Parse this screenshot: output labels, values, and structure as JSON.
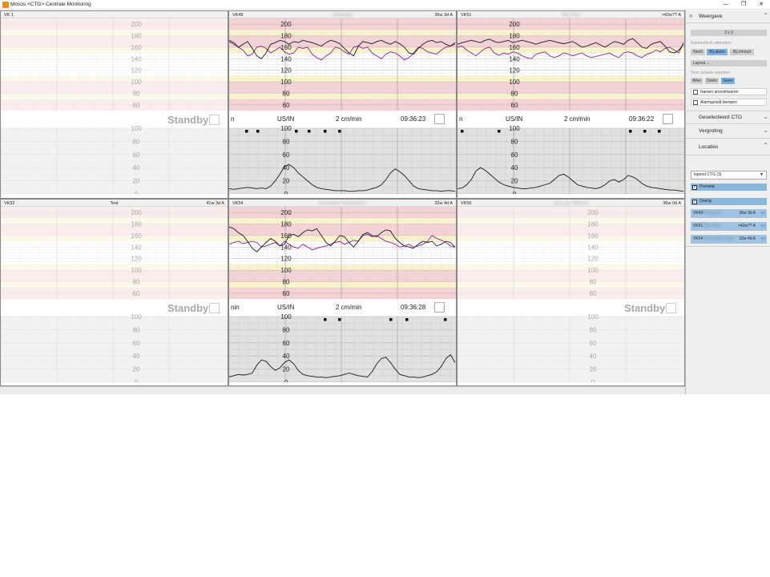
{
  "window": {
    "title": "Mosos <CTG> Centrale Monitoring",
    "controls": [
      "—",
      "❐",
      "✕"
    ]
  },
  "colors": {
    "fhr1": "#1a1a1a",
    "fhr2": "#8b1f98",
    "toco": "#1a1a1a",
    "band_red": "#f6cfd4",
    "band_yellow": "#fbf5c8",
    "band_white": "#ffffff",
    "toco_bg": "#e1e1e1",
    "accent": "#7fb2dc"
  },
  "speed_label": "2 cm/min",
  "fhr_scale": {
    "min": 50,
    "max": 210,
    "labels": [
      "200",
      "180",
      "160",
      "140",
      "120",
      "100",
      "80",
      "60"
    ]
  },
  "toco_scale": {
    "min": 0,
    "max": 100,
    "labels": [
      "100",
      "80",
      "60",
      "40",
      "20",
      "0"
    ]
  },
  "standby_label": "Standby",
  "tiles": [
    {
      "bed": "VK 1",
      "name": "",
      "ga": "",
      "state": "empty"
    },
    {
      "bed": "VK49",
      "name": "Redacted",
      "ga": "36w 3d A",
      "state": "active",
      "mode_cut": "n",
      "mode": "US/IN",
      "time": "09:36:23"
    },
    {
      "bed": "VK51",
      "name": "Tilly Vries",
      "ga": ">42w?? A",
      "state": "active",
      "mode_cut": "n",
      "mode": "US/IN",
      "time": "09:36:22"
    },
    {
      "bed": "VK52",
      "name": "Test",
      "ga": "41w 3d A",
      "state": "standby"
    },
    {
      "bed": "VK54",
      "name": "Annemarie Oelenhuizen",
      "ga": "32w 4d A",
      "state": "active",
      "mode_cut": "nin",
      "mode": "US/IN",
      "time": "09:36:28"
    },
    {
      "bed": "VK55",
      "name": "Vera van Wijkhuis",
      "ga": "36w 0d A",
      "state": "standby"
    }
  ],
  "chart_data": [
    {
      "type": "line",
      "title": "VK49",
      "ylim": [
        50,
        210
      ],
      "series": [
        {
          "name": "",
          "color": "#1a1a1a",
          "values": [
            172,
            168,
            160,
            165,
            170,
            158,
            145,
            140,
            150,
            165,
            168,
            172,
            170,
            165,
            170,
            168,
            172,
            170,
            168,
            165,
            162,
            168,
            172,
            170,
            166,
            158,
            150,
            145,
            162,
            170,
            168,
            166,
            170,
            172,
            168,
            165,
            170,
            166,
            160,
            150,
            148,
            158,
            165,
            170,
            172,
            168,
            170,
            165,
            162,
            168
          ]
        },
        {
          "name": "",
          "color": "#8b1f98",
          "values": [
            170,
            165,
            160,
            155,
            145,
            148,
            160,
            162,
            158,
            150,
            155,
            160,
            152,
            148,
            150,
            160,
            158,
            160,
            148,
            142,
            138,
            145,
            150,
            160,
            158,
            152,
            148,
            160,
            162,
            158,
            160,
            150,
            145,
            140,
            148,
            152,
            150,
            145,
            138,
            142,
            150,
            160,
            158,
            152,
            150,
            148,
            155,
            160,
            162,
            165
          ]
        },
        {
          "name": "",
          "color": "#1a1a1a",
          "values": [
            8,
            7,
            8,
            9,
            10,
            9,
            8,
            9,
            8,
            12,
            20,
            30,
            42,
            45,
            40,
            32,
            26,
            20,
            14,
            10,
            8,
            7,
            6,
            5,
            5,
            5,
            4,
            4,
            5,
            5,
            6,
            8,
            10,
            14,
            22,
            32,
            38,
            34,
            28,
            20,
            12,
            8,
            7,
            6,
            5,
            5,
            4,
            5,
            5,
            4
          ]
        }
      ]
    },
    {
      "type": "line",
      "title": "VK51",
      "ylim": [
        50,
        210
      ],
      "series": [
        {
          "name": "",
          "color": "#1a1a1a",
          "values": [
            165,
            168,
            170,
            172,
            170,
            168,
            172,
            174,
            170,
            168,
            170,
            172,
            168,
            170,
            172,
            170,
            168,
            165,
            168,
            170,
            172,
            170,
            168,
            166,
            168,
            170,
            165,
            160,
            162,
            165,
            168,
            164,
            160,
            165,
            170,
            168,
            165,
            172,
            175,
            168,
            160,
            158,
            165,
            168,
            170,
            162,
            152,
            150,
            155,
            165
          ]
        },
        {
          "name": "",
          "color": "#8b1f98",
          "values": [
            160,
            162,
            155,
            150,
            145,
            152,
            158,
            160,
            150,
            146,
            150,
            148,
            152,
            150,
            145,
            142,
            140,
            148,
            150,
            152,
            145,
            142,
            145,
            150,
            148,
            145,
            148,
            150,
            145,
            142,
            144,
            146,
            148,
            150,
            145,
            142,
            150,
            152,
            150,
            145,
            142,
            148,
            150,
            155,
            152,
            158,
            160,
            155,
            150,
            168
          ]
        },
        {
          "name": "",
          "color": "#1a1a1a",
          "values": [
            8,
            9,
            14,
            22,
            35,
            40,
            36,
            30,
            24,
            18,
            14,
            12,
            10,
            9,
            8,
            8,
            9,
            10,
            12,
            14,
            16,
            22,
            28,
            30,
            26,
            20,
            14,
            12,
            10,
            9,
            8,
            10,
            14,
            20,
            22,
            18,
            22,
            28,
            26,
            22,
            16,
            12,
            10,
            9,
            8,
            7,
            6,
            6,
            5,
            4
          ]
        }
      ]
    },
    {
      "type": "line",
      "title": "VK54",
      "ylim": [
        50,
        210
      ],
      "series": [
        {
          "name": "",
          "color": "#1a1a1a",
          "values": [
            175,
            172,
            165,
            160,
            150,
            138,
            132,
            140,
            148,
            155,
            150,
            142,
            145,
            160,
            162,
            158,
            165,
            170,
            168,
            172,
            160,
            148,
            142,
            150,
            160,
            158,
            148,
            140,
            150,
            162,
            165,
            160,
            158,
            165,
            170,
            168,
            155,
            148,
            142,
            140,
            138,
            145,
            150,
            148,
            150,
            142,
            145,
            150,
            148,
            140
          ]
        },
        {
          "name": "",
          "color": "#8b1f98",
          "values": [
            145,
            148,
            150,
            146,
            148,
            150,
            148,
            140,
            142,
            145,
            148,
            142,
            150,
            145,
            140,
            138,
            145,
            140,
            135,
            138,
            140,
            142,
            145,
            148,
            150,
            145,
            148,
            152,
            150,
            160,
            162,
            158,
            160,
            155,
            150,
            148,
            145,
            140,
            142,
            145,
            140,
            142,
            145,
            150,
            160,
            155,
            152,
            148,
            142,
            140
          ]
        },
        {
          "name": "",
          "color": "#1a1a1a",
          "values": [
            8,
            10,
            12,
            11,
            12,
            14,
            26,
            34,
            32,
            24,
            18,
            22,
            30,
            34,
            28,
            18,
            12,
            10,
            9,
            8,
            8,
            7,
            8,
            9,
            10,
            12,
            14,
            12,
            10,
            9,
            8,
            16,
            28,
            36,
            38,
            30,
            20,
            12,
            10,
            8,
            8,
            7,
            8,
            10,
            12,
            16,
            24,
            36,
            42,
            30
          ]
        }
      ]
    }
  ],
  "sidebar": {
    "weergave": {
      "title": "Weergave",
      "layout_btn": "3 x 2",
      "auto_caption": "Automatisch uitbreiden",
      "auto_opts": [
        "Nooit",
        "Bij alarm",
        "Bij inhoud"
      ],
      "layout_more": "Layout ...",
      "values_caption": "Toon actuele waarden",
      "value_opts": [
        "Alles",
        "Deels",
        "Geen"
      ],
      "anon": "Namen anonimiseren",
      "mute": "Alarmgeluid dempen"
    },
    "geselecteerd": "Geselecteerd CTG",
    "vergroting": "Vergroting",
    "locaties": {
      "title": "Locaties",
      "filter": "lopend CTG (3)",
      "groups": [
        "Prenatal",
        "Overig"
      ],
      "patients": [
        {
          "bed": "VK49",
          "name": "Redacted",
          "ga": "36w 3d A"
        },
        {
          "bed": "VK51",
          "name": "Tilly Vries",
          "ga": ">42w?? A"
        },
        {
          "bed": "VK54",
          "name": "Annemarie Oelen",
          "ga": "32w 4d A"
        }
      ]
    }
  }
}
